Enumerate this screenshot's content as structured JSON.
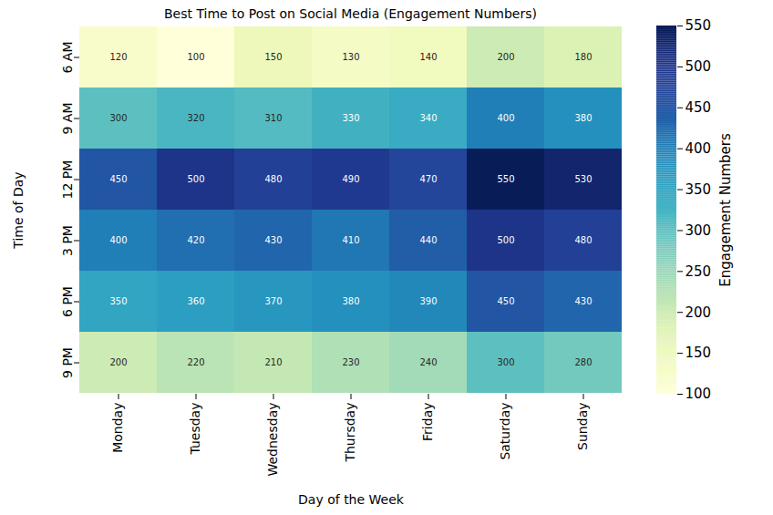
{
  "chart_data": {
    "type": "heatmap",
    "title": "Best Time to Post on Social Media (Engagement Numbers)",
    "x_label": "Day of the Week",
    "y_label": "Time of Day",
    "categories": [
      "Monday",
      "Tuesday",
      "Wednesday",
      "Thursday",
      "Friday",
      "Saturday",
      "Sunday"
    ],
    "rows": [
      "6 AM",
      "9 AM",
      "12 PM",
      "3 PM",
      "6 PM",
      "9 PM"
    ],
    "values": [
      [
        120,
        100,
        150,
        130,
        140,
        200,
        180
      ],
      [
        300,
        320,
        310,
        330,
        340,
        400,
        380
      ],
      [
        450,
        500,
        480,
        490,
        470,
        550,
        530
      ],
      [
        400,
        420,
        430,
        410,
        440,
        500,
        480
      ],
      [
        350,
        360,
        370,
        380,
        390,
        450,
        430
      ],
      [
        200,
        220,
        210,
        230,
        240,
        300,
        280
      ]
    ],
    "data_labels": true,
    "color": "YlGnBu",
    "color_label": "Engagement Numbers",
    "color_range": [
      100,
      550
    ],
    "color_ticks": [
      100,
      150,
      200,
      250,
      300,
      350,
      400,
      450,
      500,
      550
    ]
  }
}
